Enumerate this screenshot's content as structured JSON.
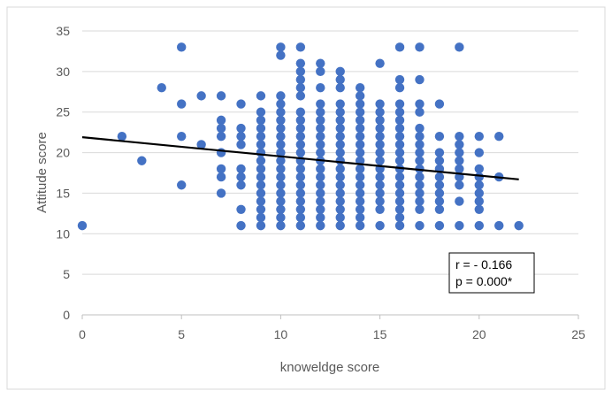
{
  "chart_data": {
    "type": "scatter",
    "title": "",
    "xlabel": "knoweldge score",
    "ylabel": "Attitude score",
    "xlim": [
      0,
      25
    ],
    "ylim": [
      0,
      35
    ],
    "xticks": [
      0,
      5,
      10,
      15,
      20,
      25
    ],
    "yticks": [
      0,
      5,
      10,
      15,
      20,
      25,
      30,
      35
    ],
    "grid": "horizontal",
    "legend": "none",
    "marker_color": "#4472C4",
    "trendline": {
      "type": "linear",
      "x": [
        0,
        22
      ],
      "y": [
        21.9,
        16.7
      ],
      "color": "#000000"
    },
    "annotation": {
      "lines": [
        "r = - 0.166",
        "p = 0.000*"
      ],
      "placement": "right-middle"
    },
    "series": [
      {
        "points": [
          [
            0,
            11
          ],
          [
            2,
            22
          ],
          [
            3,
            19
          ],
          [
            4,
            28
          ],
          [
            5,
            33
          ],
          [
            5,
            26
          ],
          [
            5,
            22
          ],
          [
            5,
            16
          ],
          [
            6,
            27
          ],
          [
            6,
            21
          ],
          [
            7,
            27
          ],
          [
            7,
            24
          ],
          [
            7,
            23
          ],
          [
            7,
            22
          ],
          [
            7,
            20
          ],
          [
            7,
            18
          ],
          [
            7,
            17
          ],
          [
            7,
            15
          ],
          [
            8,
            26
          ],
          [
            8,
            23
          ],
          [
            8,
            22
          ],
          [
            8,
            21
          ],
          [
            8,
            18
          ],
          [
            8,
            17
          ],
          [
            8,
            16
          ],
          [
            8,
            13
          ],
          [
            8,
            11
          ],
          [
            9,
            27
          ],
          [
            9,
            25
          ],
          [
            9,
            24
          ],
          [
            9,
            23
          ],
          [
            9,
            22
          ],
          [
            9,
            21
          ],
          [
            9,
            20
          ],
          [
            9,
            19
          ],
          [
            9,
            18
          ],
          [
            9,
            17
          ],
          [
            9,
            16
          ],
          [
            9,
            15
          ],
          [
            9,
            14
          ],
          [
            9,
            13
          ],
          [
            9,
            12
          ],
          [
            9,
            11
          ],
          [
            10,
            33
          ],
          [
            10,
            32
          ],
          [
            10,
            27
          ],
          [
            10,
            26
          ],
          [
            10,
            25
          ],
          [
            10,
            24
          ],
          [
            10,
            23
          ],
          [
            10,
            22
          ],
          [
            10,
            21
          ],
          [
            10,
            20
          ],
          [
            10,
            19
          ],
          [
            10,
            18
          ],
          [
            10,
            17
          ],
          [
            10,
            16
          ],
          [
            10,
            15
          ],
          [
            10,
            14
          ],
          [
            10,
            13
          ],
          [
            10,
            12
          ],
          [
            10,
            11
          ],
          [
            11,
            33
          ],
          [
            11,
            31
          ],
          [
            11,
            30
          ],
          [
            11,
            29
          ],
          [
            11,
            28
          ],
          [
            11,
            27
          ],
          [
            11,
            25
          ],
          [
            11,
            24
          ],
          [
            11,
            23
          ],
          [
            11,
            22
          ],
          [
            11,
            21
          ],
          [
            11,
            20
          ],
          [
            11,
            19
          ],
          [
            11,
            18
          ],
          [
            11,
            17
          ],
          [
            11,
            16
          ],
          [
            11,
            15
          ],
          [
            11,
            14
          ],
          [
            11,
            13
          ],
          [
            11,
            12
          ],
          [
            11,
            11
          ],
          [
            12,
            31
          ],
          [
            12,
            30
          ],
          [
            12,
            28
          ],
          [
            12,
            26
          ],
          [
            12,
            25
          ],
          [
            12,
            24
          ],
          [
            12,
            23
          ],
          [
            12,
            22
          ],
          [
            12,
            21
          ],
          [
            12,
            20
          ],
          [
            12,
            19
          ],
          [
            12,
            18
          ],
          [
            12,
            17
          ],
          [
            12,
            16
          ],
          [
            12,
            15
          ],
          [
            12,
            14
          ],
          [
            12,
            13
          ],
          [
            12,
            12
          ],
          [
            12,
            11
          ],
          [
            13,
            30
          ],
          [
            13,
            29
          ],
          [
            13,
            28
          ],
          [
            13,
            26
          ],
          [
            13,
            25
          ],
          [
            13,
            24
          ],
          [
            13,
            23
          ],
          [
            13,
            22
          ],
          [
            13,
            21
          ],
          [
            13,
            20
          ],
          [
            13,
            19
          ],
          [
            13,
            18
          ],
          [
            13,
            17
          ],
          [
            13,
            16
          ],
          [
            13,
            15
          ],
          [
            13,
            14
          ],
          [
            13,
            13
          ],
          [
            13,
            12
          ],
          [
            13,
            11
          ],
          [
            14,
            28
          ],
          [
            14,
            27
          ],
          [
            14,
            26
          ],
          [
            14,
            25
          ],
          [
            14,
            24
          ],
          [
            14,
            23
          ],
          [
            14,
            22
          ],
          [
            14,
            21
          ],
          [
            14,
            20
          ],
          [
            14,
            19
          ],
          [
            14,
            18
          ],
          [
            14,
            17
          ],
          [
            14,
            16
          ],
          [
            14,
            15
          ],
          [
            14,
            14
          ],
          [
            14,
            13
          ],
          [
            14,
            12
          ],
          [
            14,
            11
          ],
          [
            15,
            31
          ],
          [
            15,
            26
          ],
          [
            15,
            25
          ],
          [
            15,
            24
          ],
          [
            15,
            23
          ],
          [
            15,
            22
          ],
          [
            15,
            21
          ],
          [
            15,
            20
          ],
          [
            15,
            19
          ],
          [
            15,
            18
          ],
          [
            15,
            17
          ],
          [
            15,
            16
          ],
          [
            15,
            15
          ],
          [
            15,
            14
          ],
          [
            15,
            13
          ],
          [
            15,
            11
          ],
          [
            16,
            33
          ],
          [
            16,
            29
          ],
          [
            16,
            28
          ],
          [
            16,
            26
          ],
          [
            16,
            25
          ],
          [
            16,
            24
          ],
          [
            16,
            23
          ],
          [
            16,
            22
          ],
          [
            16,
            21
          ],
          [
            16,
            20
          ],
          [
            16,
            19
          ],
          [
            16,
            18
          ],
          [
            16,
            17
          ],
          [
            16,
            16
          ],
          [
            16,
            15
          ],
          [
            16,
            14
          ],
          [
            16,
            13
          ],
          [
            16,
            12
          ],
          [
            16,
            11
          ],
          [
            17,
            33
          ],
          [
            17,
            29
          ],
          [
            17,
            26
          ],
          [
            17,
            25
          ],
          [
            17,
            23
          ],
          [
            17,
            22
          ],
          [
            17,
            21
          ],
          [
            17,
            20
          ],
          [
            17,
            19
          ],
          [
            17,
            18
          ],
          [
            17,
            17
          ],
          [
            17,
            16
          ],
          [
            17,
            15
          ],
          [
            17,
            14
          ],
          [
            17,
            13
          ],
          [
            17,
            11
          ],
          [
            18,
            26
          ],
          [
            18,
            22
          ],
          [
            18,
            20
          ],
          [
            18,
            19
          ],
          [
            18,
            18
          ],
          [
            18,
            17
          ],
          [
            18,
            16
          ],
          [
            18,
            15
          ],
          [
            18,
            14
          ],
          [
            18,
            13
          ],
          [
            18,
            11
          ],
          [
            19,
            33
          ],
          [
            19,
            22
          ],
          [
            19,
            21
          ],
          [
            19,
            20
          ],
          [
            19,
            19
          ],
          [
            19,
            18
          ],
          [
            19,
            17
          ],
          [
            19,
            16
          ],
          [
            19,
            14
          ],
          [
            19,
            11
          ],
          [
            20,
            22
          ],
          [
            20,
            20
          ],
          [
            20,
            18
          ],
          [
            20,
            17
          ],
          [
            20,
            16
          ],
          [
            20,
            15
          ],
          [
            20,
            14
          ],
          [
            20,
            13
          ],
          [
            20,
            11
          ],
          [
            21,
            22
          ],
          [
            21,
            17
          ],
          [
            21,
            11
          ],
          [
            22,
            11
          ]
        ]
      }
    ]
  }
}
